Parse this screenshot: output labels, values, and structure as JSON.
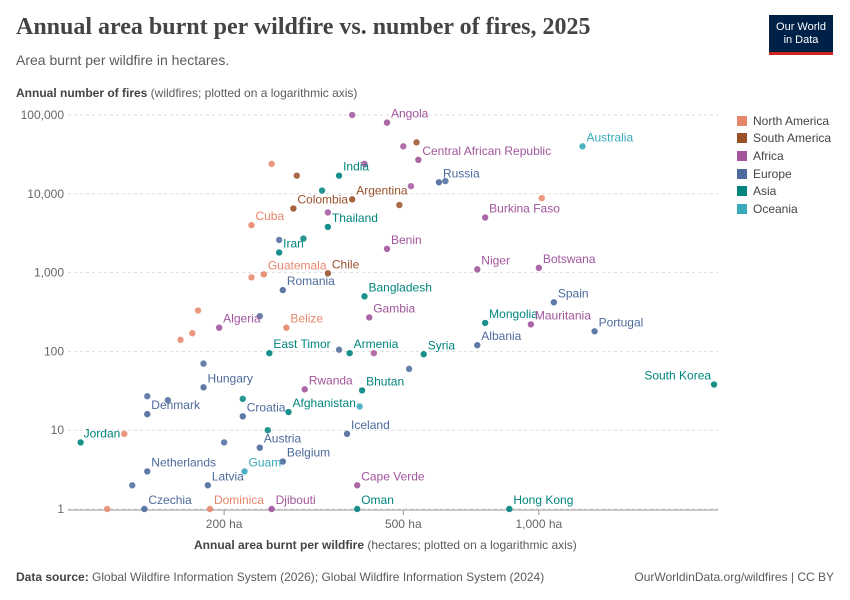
{
  "header": {
    "title": "Annual area burnt per wildfire vs. number of fires, 2025",
    "subtitle": "Area burnt per wildfire in hectares.",
    "logo_line1": "Our World",
    "logo_line2": "in Data"
  },
  "footer": {
    "source_label": "Data source:",
    "source_text": " Global Wildfire Information System (2026); Global Wildfire Information System (2024)",
    "right_text": "OurWorldinData.org/wildfires | CC BY"
  },
  "chart_data": {
    "type": "scatter",
    "title": "Annual area burnt per wildfire vs. number of fires, 2025",
    "subtitle": "Area burnt per wildfire in hectares.",
    "xlabel_main": "Annual area burnt per wildfire",
    "xlabel_note": " (hectares; plotted on a logarithmic axis)",
    "ylabel_main": "Annual number of fires",
    "ylabel_note": " (wildfires; plotted on a logarithmic axis)",
    "x_scale": "log",
    "y_scale": "log",
    "xlim": [
      90,
      2500
    ],
    "ylim": [
      1,
      100000
    ],
    "x_ticks": [
      {
        "v": 200,
        "label": "200 ha"
      },
      {
        "v": 500,
        "label": "500 ha"
      },
      {
        "v": 1000,
        "label": "1,000 ha"
      }
    ],
    "y_ticks": [
      {
        "v": 1,
        "label": "1"
      },
      {
        "v": 10,
        "label": "10"
      },
      {
        "v": 100,
        "label": "100"
      },
      {
        "v": 1000,
        "label": "1,000"
      },
      {
        "v": 10000,
        "label": "10,000"
      },
      {
        "v": 100000,
        "label": "100,000"
      }
    ],
    "grid": "horizontal dashed",
    "legend_position": "right",
    "regions": [
      {
        "name": "North America",
        "color": "#e6866a"
      },
      {
        "name": "South America",
        "color": "#9a5129"
      },
      {
        "name": "Africa",
        "color": "#a2559c"
      },
      {
        "name": "Europe",
        "color": "#4c6a9c"
      },
      {
        "name": "Asia",
        "color": "#00847e"
      },
      {
        "name": "Oceania",
        "color": "#38aaba"
      }
    ],
    "labeled_points": [
      {
        "name": "Angola",
        "region": "Africa",
        "x": 460,
        "y": 80000
      },
      {
        "name": "Australia",
        "region": "Oceania",
        "x": 1250,
        "y": 40000
      },
      {
        "name": "Central African Republic",
        "region": "Africa",
        "x": 540,
        "y": 27000
      },
      {
        "name": "India",
        "region": "Asia",
        "x": 360,
        "y": 17000
      },
      {
        "name": "Argentina",
        "region": "South America",
        "x": 385,
        "y": 8500
      },
      {
        "name": "Russia",
        "region": "Europe",
        "x": 600,
        "y": 14000
      },
      {
        "name": "Colombia",
        "region": "South America",
        "x": 285,
        "y": 6500
      },
      {
        "name": "Burkina Faso",
        "region": "Africa",
        "x": 760,
        "y": 5000
      },
      {
        "name": "Cuba",
        "region": "North America",
        "x": 230,
        "y": 4000
      },
      {
        "name": "Thailand",
        "region": "Asia",
        "x": 340,
        "y": 3800
      },
      {
        "name": "Benin",
        "region": "Africa",
        "x": 460,
        "y": 2000
      },
      {
        "name": "Iran",
        "region": "Asia",
        "x": 265,
        "y": 1800
      },
      {
        "name": "Niger",
        "region": "Africa",
        "x": 730,
        "y": 1100
      },
      {
        "name": "Botswana",
        "region": "Africa",
        "x": 1000,
        "y": 1150
      },
      {
        "name": "Guatemala",
        "region": "North America",
        "x": 245,
        "y": 950
      },
      {
        "name": "Chile",
        "region": "South America",
        "x": 340,
        "y": 980
      },
      {
        "name": "Romania",
        "region": "Europe",
        "x": 270,
        "y": 600
      },
      {
        "name": "Bangladesh",
        "region": "Asia",
        "x": 410,
        "y": 500
      },
      {
        "name": "Spain",
        "region": "Europe",
        "x": 1080,
        "y": 420
      },
      {
        "name": "Gambia",
        "region": "Africa",
        "x": 420,
        "y": 270
      },
      {
        "name": "Algeria",
        "region": "Africa",
        "x": 195,
        "y": 200
      },
      {
        "name": "Belize",
        "region": "North America",
        "x": 275,
        "y": 200
      },
      {
        "name": "Mongolia",
        "region": "Asia",
        "x": 760,
        "y": 230
      },
      {
        "name": "Mauritania",
        "region": "Africa",
        "x": 960,
        "y": 220
      },
      {
        "name": "Portugal",
        "region": "Europe",
        "x": 1330,
        "y": 180
      },
      {
        "name": "Albania",
        "region": "Europe",
        "x": 730,
        "y": 120
      },
      {
        "name": "East Timor",
        "region": "Asia",
        "x": 252,
        "y": 95
      },
      {
        "name": "Armenia",
        "region": "Asia",
        "x": 380,
        "y": 95
      },
      {
        "name": "Syria",
        "region": "Asia",
        "x": 555,
        "y": 92
      },
      {
        "name": "Hungary",
        "region": "Europe",
        "x": 180,
        "y": 35
      },
      {
        "name": "Rwanda",
        "region": "Africa",
        "x": 302,
        "y": 33
      },
      {
        "name": "Bhutan",
        "region": "Asia",
        "x": 405,
        "y": 32
      },
      {
        "name": "Afghanistan",
        "region": "Asia",
        "x": 278,
        "y": 17
      },
      {
        "name": "Denmark",
        "region": "Europe",
        "x": 135,
        "y": 16
      },
      {
        "name": "Croatia",
        "region": "Europe",
        "x": 220,
        "y": 15
      },
      {
        "name": "Iceland",
        "region": "Europe",
        "x": 375,
        "y": 9
      },
      {
        "name": "Jordan",
        "region": "Asia",
        "x": 96,
        "y": 7
      },
      {
        "name": "Austria",
        "region": "Europe",
        "x": 240,
        "y": 6
      },
      {
        "name": "Belgium",
        "region": "Europe",
        "x": 270,
        "y": 4
      },
      {
        "name": "Netherlands",
        "region": "Europe",
        "x": 135,
        "y": 3
      },
      {
        "name": "Guam",
        "region": "Oceania",
        "x": 222,
        "y": 3
      },
      {
        "name": "Latvia",
        "region": "Europe",
        "x": 184,
        "y": 2
      },
      {
        "name": "Cape Verde",
        "region": "Africa",
        "x": 395,
        "y": 2
      },
      {
        "name": "Czechia",
        "region": "Europe",
        "x": 133,
        "y": 1
      },
      {
        "name": "Dominica",
        "region": "North America",
        "x": 186,
        "y": 1
      },
      {
        "name": "Djibouti",
        "region": "Africa",
        "x": 255,
        "y": 1
      },
      {
        "name": "Oman",
        "region": "Asia",
        "x": 395,
        "y": 1
      },
      {
        "name": "South Korea",
        "region": "Asia",
        "x": 2450,
        "y": 38
      },
      {
        "name": "Hong Kong",
        "region": "Asia",
        "x": 860,
        "y": 1
      }
    ],
    "unlabeled_points": [
      {
        "region": "Africa",
        "x": 385,
        "y": 100000
      },
      {
        "region": "South America",
        "x": 535,
        "y": 45000
      },
      {
        "region": "Africa",
        "x": 500,
        "y": 40000
      },
      {
        "region": "North America",
        "x": 255,
        "y": 24000
      },
      {
        "region": "Africa",
        "x": 410,
        "y": 24000
      },
      {
        "region": "South America",
        "x": 290,
        "y": 17000
      },
      {
        "region": "Europe",
        "x": 620,
        "y": 14500
      },
      {
        "region": "Africa",
        "x": 520,
        "y": 12500
      },
      {
        "region": "Asia",
        "x": 330,
        "y": 11000
      },
      {
        "region": "North America",
        "x": 1015,
        "y": 8800
      },
      {
        "region": "South America",
        "x": 490,
        "y": 7200
      },
      {
        "region": "Africa",
        "x": 340,
        "y": 5800
      },
      {
        "region": "Europe",
        "x": 265,
        "y": 2600
      },
      {
        "region": "Asia",
        "x": 300,
        "y": 2700
      },
      {
        "region": "North America",
        "x": 230,
        "y": 870
      },
      {
        "region": "North America",
        "x": 175,
        "y": 330
      },
      {
        "region": "North America",
        "x": 170,
        "y": 170
      },
      {
        "region": "North America",
        "x": 160,
        "y": 140
      },
      {
        "region": "Europe",
        "x": 240,
        "y": 280
      },
      {
        "region": "Europe",
        "x": 360,
        "y": 105
      },
      {
        "region": "Africa",
        "x": 430,
        "y": 95
      },
      {
        "region": "Europe",
        "x": 515,
        "y": 60
      },
      {
        "region": "Europe",
        "x": 180,
        "y": 70
      },
      {
        "region": "Europe",
        "x": 135,
        "y": 27
      },
      {
        "region": "Europe",
        "x": 150,
        "y": 24
      },
      {
        "region": "North America",
        "x": 120,
        "y": 9
      },
      {
        "region": "Europe",
        "x": 125,
        "y": 2
      },
      {
        "region": "North America",
        "x": 110,
        "y": 1
      },
      {
        "region": "Asia",
        "x": 250,
        "y": 10
      },
      {
        "region": "Oceania",
        "x": 400,
        "y": 20
      },
      {
        "region": "Europe",
        "x": 200,
        "y": 7
      },
      {
        "region": "Asia",
        "x": 220,
        "y": 25
      }
    ]
  }
}
